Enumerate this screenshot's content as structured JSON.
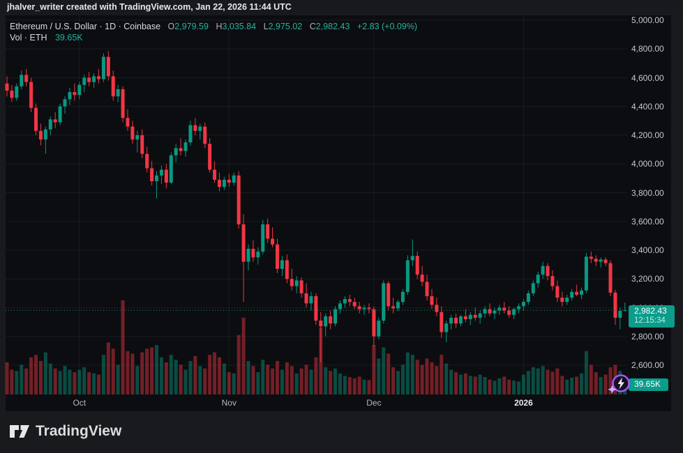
{
  "attribution": {
    "text": "jhalver_writer created with TradingView.com, Jan 22, 2026 11:44 UTC"
  },
  "legend": {
    "title": "Ethereum / U.S. Dollar · 1D · Coinbase",
    "ohlc": {
      "o_label": "O",
      "o_value": "2,979.59",
      "h_label": "H",
      "h_value": "3,035.84",
      "l_label": "L",
      "l_value": "2,975.02",
      "c_label": "C",
      "c_value": "2,982.43",
      "change": "+2.83 (+0.09%)"
    },
    "volume_row": {
      "label": "Vol · ETH",
      "value": "39.65K"
    }
  },
  "badges": {
    "price": {
      "value": "2,982.43",
      "countdown": "12:15:34"
    },
    "volume": {
      "value": "39.65K"
    }
  },
  "footer": {
    "brand": "TradingView"
  },
  "colors": {
    "up": "#089981",
    "down": "#f23645",
    "vol_up": "rgba(8,153,129,0.45)",
    "vol_down": "rgba(242,54,69,0.45)",
    "grid": "rgba(255,255,255,0.06)",
    "last_price_line": "#089981",
    "badge_bg": "#0b9c8a",
    "spark_purple": "#a259f7"
  },
  "chart_data": {
    "type": "candlestick",
    "title": "Ethereum / U.S. Dollar, 1D, Coinbase",
    "symbol": "Ethereum / U.S. Dollar",
    "exchange": "Coinbase",
    "interval": "1D",
    "legend_position": "top-left",
    "grid": true,
    "current_bar": {
      "open": 2979.59,
      "high": 3035.84,
      "low": 2975.02,
      "close": 2982.43,
      "change": 2.83,
      "change_pct": 0.09,
      "volume_k": 39.65
    },
    "last_close": 2982.43,
    "y_axis": {
      "side": "right",
      "ylim": [
        2450,
        5030
      ],
      "tick_labels": [
        "5,000.00",
        "4,800.00",
        "4,600.00",
        "4,400.00",
        "4,200.00",
        "4,000.00",
        "3,800.00",
        "3,600.00",
        "3,400.00",
        "3,200.00",
        "3,000.00",
        "2,800.00",
        "2,600.00"
      ]
    },
    "x_axis": {
      "labels": [
        {
          "text": "Oct",
          "index": 15,
          "bold": false
        },
        {
          "text": "Nov",
          "index": 46,
          "bold": false
        },
        {
          "text": "Dec",
          "index": 76,
          "bold": false
        },
        {
          "text": "2026",
          "index": 107,
          "bold": true
        }
      ]
    },
    "volume_scale_max_k": 380,
    "candles_format": [
      "date",
      "open",
      "high",
      "low",
      "close",
      "volume_k"
    ],
    "candles": [
      [
        "2025-09-16",
        4560,
        4610,
        4470,
        4510,
        130
      ],
      [
        "2025-09-17",
        4510,
        4550,
        4430,
        4460,
        100
      ],
      [
        "2025-09-18",
        4460,
        4560,
        4440,
        4540,
        95
      ],
      [
        "2025-09-19",
        4540,
        4650,
        4520,
        4620,
        120
      ],
      [
        "2025-09-20",
        4620,
        4660,
        4540,
        4570,
        105
      ],
      [
        "2025-09-21",
        4570,
        4600,
        4360,
        4390,
        150
      ],
      [
        "2025-09-22",
        4390,
        4420,
        4200,
        4230,
        160
      ],
      [
        "2025-09-23",
        4230,
        4280,
        4130,
        4170,
        135
      ],
      [
        "2025-09-24",
        4170,
        4260,
        4070,
        4240,
        170
      ],
      [
        "2025-09-25",
        4240,
        4330,
        4200,
        4310,
        125
      ],
      [
        "2025-09-26",
        4310,
        4360,
        4250,
        4290,
        105
      ],
      [
        "2025-09-27",
        4290,
        4420,
        4270,
        4400,
        95
      ],
      [
        "2025-09-28",
        4400,
        4470,
        4350,
        4450,
        115
      ],
      [
        "2025-09-29",
        4450,
        4530,
        4410,
        4500,
        100
      ],
      [
        "2025-09-30",
        4500,
        4560,
        4440,
        4480,
        90
      ],
      [
        "2025-10-01",
        4480,
        4570,
        4450,
        4550,
        100
      ],
      [
        "2025-10-02",
        4550,
        4620,
        4500,
        4600,
        110
      ],
      [
        "2025-10-03",
        4600,
        4640,
        4540,
        4570,
        90
      ],
      [
        "2025-10-04",
        4570,
        4630,
        4530,
        4610,
        85
      ],
      [
        "2025-10-05",
        4610,
        4660,
        4560,
        4590,
        80
      ],
      [
        "2025-10-06",
        4590,
        4770,
        4570,
        4745,
        160
      ],
      [
        "2025-10-07",
        4745,
        4785,
        4580,
        4610,
        210
      ],
      [
        "2025-10-08",
        4610,
        4650,
        4440,
        4470,
        185
      ],
      [
        "2025-10-09",
        4470,
        4550,
        4430,
        4520,
        120
      ],
      [
        "2025-10-10",
        4520,
        4540,
        4290,
        4320,
        380
      ],
      [
        "2025-10-11",
        4320,
        4380,
        4230,
        4260,
        175
      ],
      [
        "2025-10-12",
        4260,
        4300,
        4140,
        4170,
        165
      ],
      [
        "2025-10-13",
        4170,
        4230,
        4080,
        4200,
        115
      ],
      [
        "2025-10-14",
        4200,
        4240,
        4040,
        4070,
        170
      ],
      [
        "2025-10-15",
        4070,
        4120,
        3940,
        3970,
        185
      ],
      [
        "2025-10-16",
        3970,
        4020,
        3850,
        3880,
        190
      ],
      [
        "2025-10-17",
        3880,
        3950,
        3760,
        3920,
        200
      ],
      [
        "2025-10-18",
        3920,
        3990,
        3860,
        3960,
        150
      ],
      [
        "2025-10-19",
        3960,
        4000,
        3830,
        3870,
        130
      ],
      [
        "2025-10-20",
        3870,
        4080,
        3860,
        4060,
        160
      ],
      [
        "2025-10-21",
        4060,
        4140,
        4010,
        4110,
        140
      ],
      [
        "2025-10-22",
        4110,
        4180,
        4060,
        4090,
        120
      ],
      [
        "2025-10-23",
        4090,
        4170,
        4050,
        4150,
        100
      ],
      [
        "2025-10-24",
        4150,
        4300,
        4130,
        4270,
        135
      ],
      [
        "2025-10-25",
        4270,
        4320,
        4200,
        4230,
        155
      ],
      [
        "2025-10-26",
        4230,
        4280,
        4170,
        4260,
        115
      ],
      [
        "2025-10-27",
        4260,
        4290,
        4110,
        4140,
        105
      ],
      [
        "2025-10-28",
        4140,
        4180,
        3940,
        3960,
        160
      ],
      [
        "2025-10-29",
        3960,
        4020,
        3870,
        3890,
        170
      ],
      [
        "2025-10-30",
        3890,
        3940,
        3810,
        3840,
        150
      ],
      [
        "2025-10-31",
        3840,
        3910,
        3820,
        3890,
        125
      ],
      [
        "2025-11-01",
        3890,
        3930,
        3840,
        3870,
        90
      ],
      [
        "2025-11-02",
        3870,
        3940,
        3850,
        3920,
        85
      ],
      [
        "2025-11-03",
        3920,
        3950,
        3550,
        3580,
        240
      ],
      [
        "2025-11-04",
        3580,
        3650,
        3040,
        3320,
        310
      ],
      [
        "2025-11-05",
        3320,
        3440,
        3260,
        3410,
        135
      ],
      [
        "2025-11-06",
        3410,
        3470,
        3320,
        3350,
        115
      ],
      [
        "2025-11-07",
        3350,
        3420,
        3300,
        3390,
        90
      ],
      [
        "2025-11-08",
        3390,
        3610,
        3370,
        3580,
        140
      ],
      [
        "2025-11-09",
        3580,
        3620,
        3450,
        3480,
        120
      ],
      [
        "2025-11-10",
        3480,
        3560,
        3420,
        3440,
        105
      ],
      [
        "2025-11-11",
        3440,
        3480,
        3240,
        3270,
        135
      ],
      [
        "2025-11-12",
        3270,
        3360,
        3220,
        3330,
        100
      ],
      [
        "2025-11-13",
        3330,
        3370,
        3170,
        3200,
        130
      ],
      [
        "2025-11-14",
        3200,
        3270,
        3120,
        3150,
        115
      ],
      [
        "2025-11-15",
        3150,
        3220,
        3100,
        3190,
        85
      ],
      [
        "2025-11-16",
        3190,
        3210,
        3070,
        3100,
        105
      ],
      [
        "2025-11-17",
        3100,
        3170,
        3000,
        3030,
        120
      ],
      [
        "2025-11-18",
        3030,
        3110,
        2980,
        3080,
        100
      ],
      [
        "2025-11-19",
        3080,
        3100,
        2880,
        2910,
        150
      ],
      [
        "2025-11-20",
        2910,
        2970,
        2620,
        2870,
        270
      ],
      [
        "2025-11-21",
        2870,
        2960,
        2800,
        2940,
        110
      ],
      [
        "2025-11-22",
        2940,
        2980,
        2850,
        2890,
        95
      ],
      [
        "2025-11-23",
        2890,
        3010,
        2870,
        2990,
        105
      ],
      [
        "2025-11-24",
        2990,
        3050,
        2960,
        3030,
        85
      ],
      [
        "2025-11-25",
        3030,
        3080,
        3000,
        3060,
        75
      ],
      [
        "2025-11-26",
        3060,
        3090,
        3010,
        3040,
        70
      ],
      [
        "2025-11-27",
        3040,
        3070,
        2990,
        3010,
        65
      ],
      [
        "2025-11-28",
        3010,
        3040,
        2960,
        2990,
        72
      ],
      [
        "2025-11-29",
        2990,
        3020,
        2950,
        3000,
        60
      ],
      [
        "2025-11-30",
        3000,
        3030,
        2960,
        2990,
        58
      ],
      [
        "2025-12-01",
        2990,
        3010,
        2730,
        2800,
        200
      ],
      [
        "2025-12-02",
        2800,
        2930,
        2780,
        2910,
        145
      ],
      [
        "2025-12-03",
        2910,
        3190,
        2890,
        3170,
        190
      ],
      [
        "2025-12-04",
        3170,
        3185,
        2980,
        3010,
        165
      ],
      [
        "2025-12-05",
        3010,
        3070,
        2960,
        2995,
        110
      ],
      [
        "2025-12-06",
        2995,
        3055,
        2975,
        3040,
        95
      ],
      [
        "2025-12-07",
        3040,
        3130,
        3020,
        3110,
        120
      ],
      [
        "2025-12-08",
        3110,
        3365,
        3090,
        3330,
        170
      ],
      [
        "2025-12-09",
        3330,
        3475,
        3290,
        3360,
        160
      ],
      [
        "2025-12-10",
        3360,
        3390,
        3200,
        3230,
        140
      ],
      [
        "2025-12-11",
        3230,
        3290,
        3150,
        3180,
        120
      ],
      [
        "2025-12-12",
        3180,
        3230,
        3050,
        3080,
        145
      ],
      [
        "2025-12-13",
        3080,
        3130,
        2990,
        3020,
        130
      ],
      [
        "2025-12-14",
        3020,
        3070,
        2940,
        2970,
        115
      ],
      [
        "2025-12-15",
        2970,
        3010,
        2790,
        2830,
        160
      ],
      [
        "2025-12-16",
        2830,
        2910,
        2760,
        2890,
        125
      ],
      [
        "2025-12-17",
        2890,
        2950,
        2850,
        2930,
        100
      ],
      [
        "2025-12-18",
        2930,
        2960,
        2860,
        2890,
        90
      ],
      [
        "2025-12-19",
        2890,
        2950,
        2870,
        2940,
        80
      ],
      [
        "2025-12-20",
        2940,
        2990,
        2900,
        2920,
        85
      ],
      [
        "2025-12-21",
        2920,
        2970,
        2880,
        2950,
        75
      ],
      [
        "2025-12-22",
        2950,
        3000,
        2910,
        2930,
        72
      ],
      [
        "2025-12-23",
        2930,
        2980,
        2890,
        2960,
        80
      ],
      [
        "2025-12-24",
        2960,
        3010,
        2930,
        2990,
        70
      ],
      [
        "2025-12-25",
        2990,
        3030,
        2940,
        2960,
        60
      ],
      [
        "2025-12-26",
        2960,
        3000,
        2920,
        2980,
        55
      ],
      [
        "2025-12-27",
        2980,
        3020,
        2950,
        3000,
        65
      ],
      [
        "2025-12-28",
        3000,
        3040,
        2960,
        2980,
        72
      ],
      [
        "2025-12-29",
        2980,
        3010,
        2930,
        2950,
        60
      ],
      [
        "2025-12-30",
        2950,
        3000,
        2920,
        2990,
        56
      ],
      [
        "2025-12-31",
        2990,
        3030,
        2960,
        3010,
        52
      ],
      [
        "2026-01-01",
        3010,
        3060,
        2980,
        3040,
        80
      ],
      [
        "2026-01-02",
        3040,
        3120,
        3020,
        3100,
        95
      ],
      [
        "2026-01-03",
        3100,
        3190,
        3080,
        3170,
        110
      ],
      [
        "2026-01-04",
        3170,
        3250,
        3140,
        3230,
        105
      ],
      [
        "2026-01-05",
        3230,
        3320,
        3200,
        3290,
        115
      ],
      [
        "2026-01-06",
        3290,
        3310,
        3190,
        3220,
        100
      ],
      [
        "2026-01-07",
        3220,
        3260,
        3120,
        3150,
        92
      ],
      [
        "2026-01-08",
        3150,
        3190,
        3040,
        3070,
        105
      ],
      [
        "2026-01-09",
        3070,
        3110,
        3010,
        3040,
        75
      ],
      [
        "2026-01-10",
        3040,
        3090,
        3020,
        3070,
        60
      ],
      [
        "2026-01-11",
        3070,
        3130,
        3050,
        3110,
        68
      ],
      [
        "2026-01-12",
        3110,
        3160,
        3080,
        3090,
        72
      ],
      [
        "2026-01-13",
        3090,
        3140,
        3060,
        3120,
        85
      ],
      [
        "2026-01-14",
        3120,
        3380,
        3100,
        3355,
        175
      ],
      [
        "2026-01-15",
        3355,
        3390,
        3310,
        3340,
        120
      ],
      [
        "2026-01-16",
        3340,
        3365,
        3290,
        3320,
        90
      ],
      [
        "2026-01-17",
        3320,
        3350,
        3280,
        3335,
        70
      ],
      [
        "2026-01-18",
        3335,
        3350,
        3290,
        3310,
        80
      ],
      [
        "2026-01-19",
        3310,
        3330,
        3080,
        3105,
        110
      ],
      [
        "2026-01-20",
        3105,
        3125,
        2880,
        2930,
        120
      ],
      [
        "2026-01-21",
        2930,
        3000,
        2850,
        2978,
        95
      ],
      [
        "2026-01-22",
        2979.59,
        3035.84,
        2975.02,
        2982.43,
        39.65
      ]
    ]
  }
}
